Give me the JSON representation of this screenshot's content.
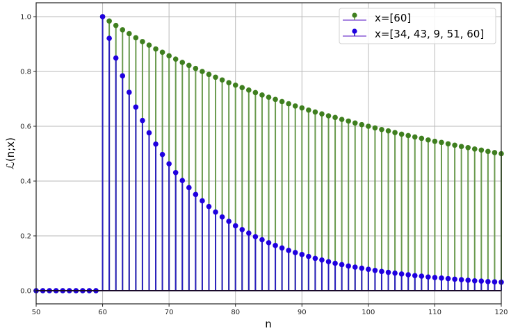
{
  "chart_data": {
    "type": "stem",
    "title": "",
    "xlabel": "n",
    "ylabel": "ℒ(n;x)",
    "xlim": [
      50,
      120
    ],
    "ylim": [
      -0.05,
      1.05
    ],
    "xticks": [
      50,
      60,
      70,
      80,
      90,
      100,
      110,
      120
    ],
    "yticks": [
      0.0,
      0.2,
      0.4,
      0.6,
      0.8,
      1.0
    ],
    "ytick_labels": [
      "0.0",
      "0.2",
      "0.4",
      "0.6",
      "0.8",
      "1.0"
    ],
    "grid": true,
    "legend_position": "upper right",
    "x": [
      50,
      51,
      52,
      53,
      54,
      55,
      56,
      57,
      58,
      59,
      60,
      61,
      62,
      63,
      64,
      65,
      66,
      67,
      68,
      69,
      70,
      71,
      72,
      73,
      74,
      75,
      76,
      77,
      78,
      79,
      80,
      81,
      82,
      83,
      84,
      85,
      86,
      87,
      88,
      89,
      90,
      91,
      92,
      93,
      94,
      95,
      96,
      97,
      98,
      99,
      100,
      101,
      102,
      103,
      104,
      105,
      106,
      107,
      108,
      109,
      110,
      111,
      112,
      113,
      114,
      115,
      116,
      117,
      118,
      119,
      120
    ],
    "series": [
      {
        "name": "x=[60]",
        "marker_color": "#3f7f1f",
        "stem_color": "#6a9a4e",
        "formula": "0 for n<60, 60/n for n>=60",
        "values": [
          0,
          0,
          0,
          0,
          0,
          0,
          0,
          0,
          0,
          0,
          1.0,
          0.984,
          0.968,
          0.952,
          0.938,
          0.923,
          0.909,
          0.896,
          0.882,
          0.87,
          0.857,
          0.845,
          0.833,
          0.822,
          0.811,
          0.8,
          0.789,
          0.779,
          0.769,
          0.759,
          0.75,
          0.741,
          0.732,
          0.723,
          0.714,
          0.706,
          0.698,
          0.69,
          0.682,
          0.674,
          0.667,
          0.659,
          0.652,
          0.645,
          0.638,
          0.632,
          0.625,
          0.619,
          0.612,
          0.606,
          0.6,
          0.594,
          0.588,
          0.583,
          0.577,
          0.571,
          0.566,
          0.561,
          0.556,
          0.55,
          0.545,
          0.541,
          0.536,
          0.531,
          0.526,
          0.522,
          0.517,
          0.513,
          0.508,
          0.504,
          0.5
        ]
      },
      {
        "name": "x=[34, 43, 9, 51, 60]",
        "marker_color": "#1f00e0",
        "stem_color": "#2a1fbf",
        "formula": "0 for n<60, (60/n)^5 for n>=60",
        "values": [
          0,
          0,
          0,
          0,
          0,
          0,
          0,
          0,
          0,
          0,
          1.0,
          0.921,
          0.849,
          0.784,
          0.724,
          0.67,
          0.621,
          0.576,
          0.535,
          0.497,
          0.463,
          0.431,
          0.402,
          0.376,
          0.351,
          0.328,
          0.307,
          0.287,
          0.269,
          0.253,
          0.237,
          0.223,
          0.21,
          0.197,
          0.186,
          0.175,
          0.165,
          0.156,
          0.147,
          0.139,
          0.132,
          0.125,
          0.118,
          0.112,
          0.106,
          0.1,
          0.095,
          0.09,
          0.086,
          0.082,
          0.078,
          0.074,
          0.07,
          0.067,
          0.064,
          0.061,
          0.058,
          0.055,
          0.053,
          0.05,
          0.048,
          0.046,
          0.044,
          0.042,
          0.04,
          0.038,
          0.036,
          0.035,
          0.033,
          0.032,
          0.031
        ]
      }
    ]
  },
  "legend": {
    "items": [
      {
        "label": "x=[60]",
        "marker_color": "#3f7f1f",
        "line_color": "#8a5cd6"
      },
      {
        "label": "x=[34, 43, 9, 51, 60]",
        "marker_color": "#1f00e0",
        "line_color": "#8a5cd6"
      }
    ]
  },
  "axes": {
    "xlabel": "n",
    "ylabel": "ℒ(n;x)"
  }
}
